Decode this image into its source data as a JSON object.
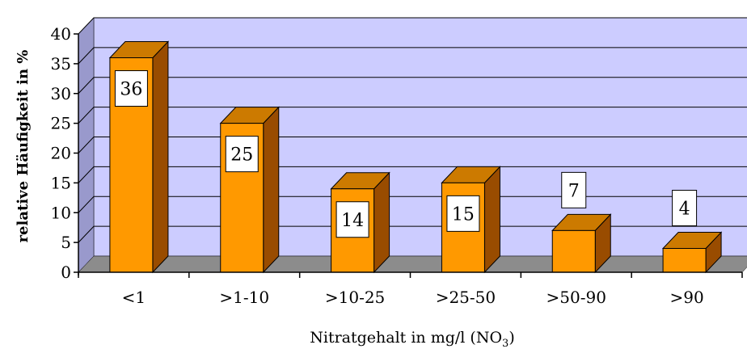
{
  "chart_data": {
    "type": "bar",
    "categories": [
      "<1",
      ">1-10",
      ">10-25",
      ">25-50",
      ">50-90",
      ">90"
    ],
    "values": [
      36,
      25,
      14,
      15,
      7,
      4
    ],
    "data_labels": [
      "36",
      "25",
      "14",
      "15",
      "7",
      "4"
    ],
    "ylim": [
      0,
      40
    ],
    "y_ticks": [
      0,
      5,
      10,
      15,
      20,
      25,
      30,
      35,
      40
    ],
    "ylabel": "relative Häufigkeit in %",
    "xlabel": "Nitratgehalt in mg/l (NO",
    "xlabel_subscript": "3",
    "xlabel_suffix": ")",
    "grid": true,
    "three_d": true,
    "colors": {
      "plot_back": "#ccccff",
      "plot_side": "#9999cc",
      "floor": "#8c8c8c",
      "bar_front": "#ff9900",
      "bar_top": "#cc7a00",
      "bar_side": "#994c00",
      "grid": "#000000"
    }
  }
}
